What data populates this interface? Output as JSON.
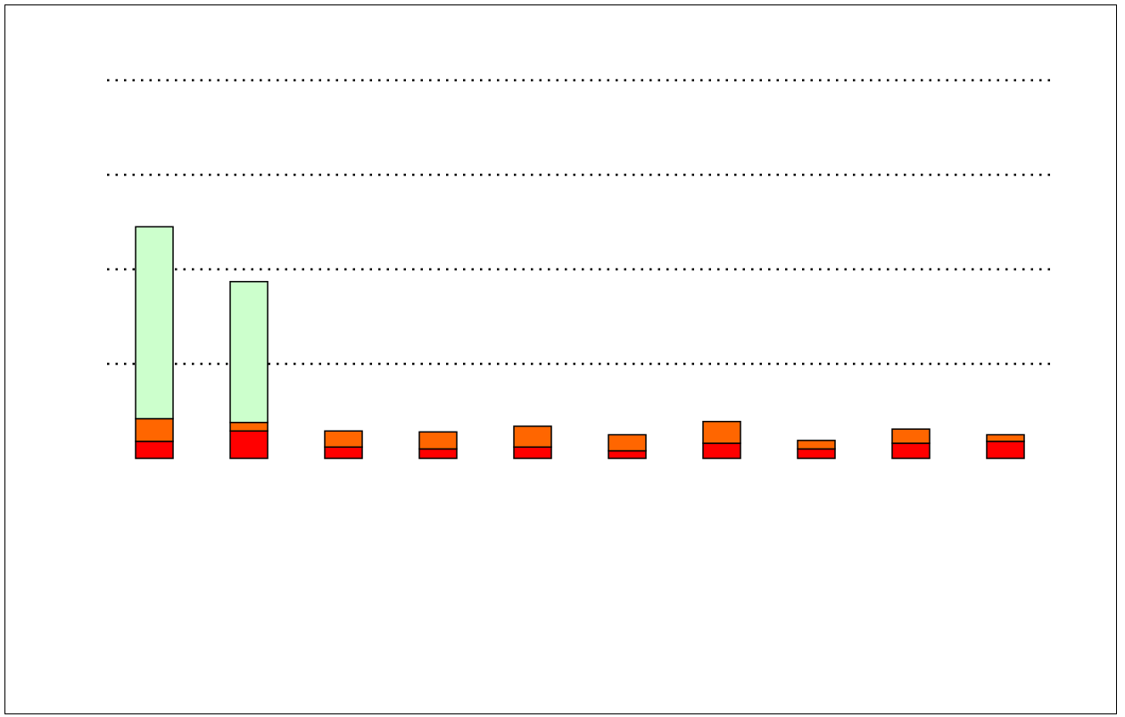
{
  "chart_data": {
    "type": "bar",
    "stacked": true,
    "title": "",
    "xlabel": "",
    "ylabel": "",
    "categories": [
      "",
      "",
      "",
      "",
      "",
      "",
      "",
      "",
      "",
      ""
    ],
    "ylim": [
      0,
      40
    ],
    "gridlines": [
      10,
      20,
      30,
      40
    ],
    "grid": true,
    "legend": "none",
    "series": [
      {
        "color": "#ff0000",
        "values": [
          1.8,
          2.9,
          1.2,
          1.0,
          1.2,
          0.8,
          1.6,
          1.0,
          1.6,
          1.8
        ]
      },
      {
        "color": "#ff6600",
        "values": [
          2.4,
          0.9,
          1.7,
          1.8,
          2.2,
          1.7,
          2.3,
          0.9,
          1.5,
          0.7
        ]
      },
      {
        "color": "#ccffcc",
        "values": [
          20.3,
          14.9,
          0,
          0,
          0,
          0,
          0,
          0,
          0,
          0
        ]
      }
    ]
  }
}
